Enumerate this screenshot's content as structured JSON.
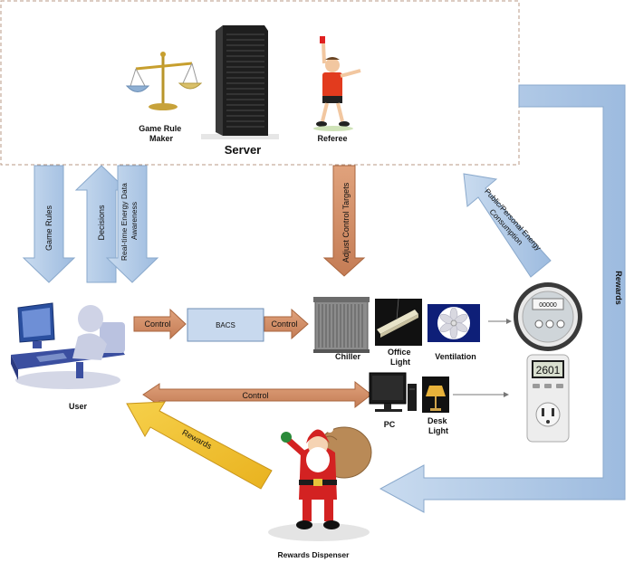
{
  "server_box": {
    "game_rule_maker": [
      "Game Rule",
      "Maker"
    ],
    "server": "Server",
    "referee": "Referee"
  },
  "vertical_arrows": {
    "game_rules": "Game Rules",
    "decisions": "Decisions",
    "energy_awareness": [
      "Real-time Energy Data",
      "Awareness"
    ],
    "adjust_targets": "Adjust Control Targets",
    "public_personal": [
      "Public/Personal Energy",
      "Consumption"
    ]
  },
  "rewards_loop": "Rewards",
  "user": "User",
  "control_1": "Control",
  "bacs": "BACS",
  "control_2": "Control",
  "control_long": "Control",
  "devices": {
    "chiller": "Chiller",
    "office_light": [
      "Office",
      "Light"
    ],
    "ventilation": "Ventilation",
    "pc": "PC",
    "desk_light": [
      "Desk",
      "Light"
    ]
  },
  "meter_digital": {
    "reading": "2601"
  },
  "meter_analog": {
    "reading": "00000"
  },
  "rewards_yellow": "Rewards",
  "rewards_dispenser": "Rewards Dispenser",
  "colors": {
    "blue_arrow": "#a9c4e2",
    "orange_arrow": "#cd8a64",
    "yellow_arrow": "#f2c12e",
    "bacs_fill": "#c8d9ee"
  }
}
